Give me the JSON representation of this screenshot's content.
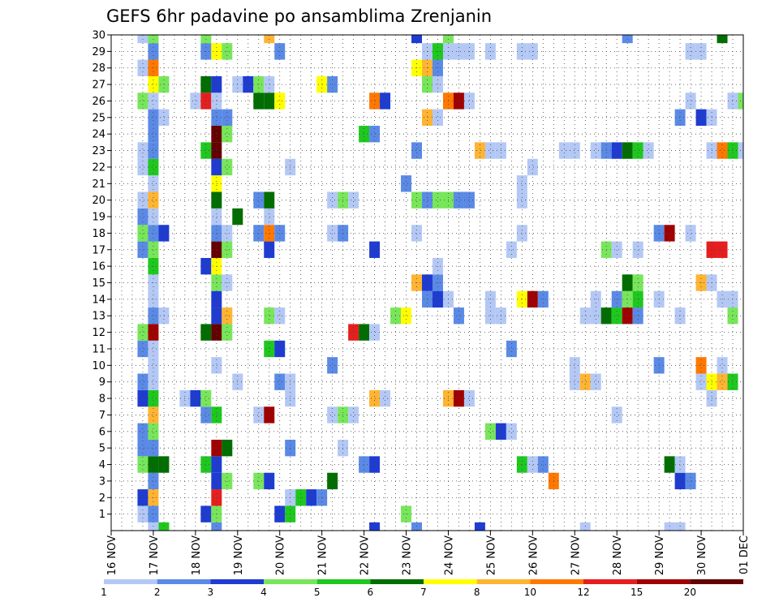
{
  "chart_data": {
    "type": "heatmap",
    "title": "GEFS 6hr padavine po ansamblima Zrenjanin",
    "xlabel": "",
    "ylabel": "",
    "x_tick_labels": [
      "16 NOV",
      "17 NOV",
      "18 NOV",
      "19 NOV",
      "20 NOV",
      "21 NOV",
      "22 NOV",
      "23 NOV",
      "24 NOV",
      "25 NOV",
      "26 NOV",
      "27 NOV",
      "28 NOV",
      "29 NOV",
      "30 NOV",
      "01 DEC"
    ],
    "x_unit": "6-hour steps from 16 NOV 00Z (4 steps per day)",
    "xlim": [
      0,
      60
    ],
    "y_members": [
      1,
      2,
      3,
      4,
      5,
      6,
      7,
      8,
      9,
      10,
      11,
      12,
      13,
      14,
      15,
      16,
      17,
      18,
      19,
      20,
      21,
      22,
      23,
      24,
      25,
      26,
      27,
      28,
      29,
      30
    ],
    "ylim": [
      0,
      30
    ],
    "grid": true,
    "colorbar": {
      "position": "bottom",
      "tick_labels": [
        "1",
        "2",
        "3",
        "4",
        "5",
        "6",
        "7",
        "8",
        "10",
        "12",
        "15",
        "20"
      ],
      "bins": [
        {
          "min": 1,
          "max": 2,
          "color": "#b4c8f5"
        },
        {
          "min": 2,
          "max": 3,
          "color": "#5a8ae6"
        },
        {
          "min": 3,
          "max": 4,
          "color": "#1e3cd2"
        },
        {
          "min": 4,
          "max": 5,
          "color": "#78e65a"
        },
        {
          "min": 5,
          "max": 6,
          "color": "#1ec81e"
        },
        {
          "min": 6,
          "max": 7,
          "color": "#006e00"
        },
        {
          "min": 7,
          "max": 8,
          "color": "#ffff00"
        },
        {
          "min": 8,
          "max": 10,
          "color": "#ffb432"
        },
        {
          "min": 10,
          "max": 12,
          "color": "#ff7800"
        },
        {
          "min": 12,
          "max": 15,
          "color": "#e61e1e"
        },
        {
          "min": 15,
          "max": 20,
          "color": "#a00000"
        },
        {
          "min": 20,
          "max": 25,
          "color": "#640000"
        }
      ]
    },
    "cells": [
      [
        0,
        4,
        1.5
      ],
      [
        0,
        5,
        5.5
      ],
      [
        0,
        10,
        2.5
      ],
      [
        0,
        25,
        3.5
      ],
      [
        0,
        29,
        2.5
      ],
      [
        0,
        35,
        3.5
      ],
      [
        0,
        45,
        1.5
      ],
      [
        0,
        53,
        1.5
      ],
      [
        0,
        54,
        1.5
      ],
      [
        1,
        3,
        1.5
      ],
      [
        1,
        4,
        2.5
      ],
      [
        1,
        9,
        3.5
      ],
      [
        1,
        10,
        4.5
      ],
      [
        1,
        16,
        3.5
      ],
      [
        1,
        17,
        5.5
      ],
      [
        1,
        28,
        4.5
      ],
      [
        2,
        3,
        3.5
      ],
      [
        2,
        4,
        8.5
      ],
      [
        2,
        10,
        12.5
      ],
      [
        2,
        17,
        1.5
      ],
      [
        2,
        18,
        5.5
      ],
      [
        2,
        19,
        3.5
      ],
      [
        2,
        20,
        2.5
      ],
      [
        3,
        4,
        2.5
      ],
      [
        3,
        10,
        3.5
      ],
      [
        3,
        11,
        4.5
      ],
      [
        3,
        14,
        4.5
      ],
      [
        3,
        15,
        3.5
      ],
      [
        3,
        21,
        6.5
      ],
      [
        3,
        42,
        10.5
      ],
      [
        3,
        54,
        3.5
      ],
      [
        3,
        55,
        2.5
      ],
      [
        4,
        3,
        4.5
      ],
      [
        4,
        4,
        6.5
      ],
      [
        4,
        5,
        6.5
      ],
      [
        4,
        9,
        5.5
      ],
      [
        4,
        10,
        3.5
      ],
      [
        4,
        24,
        2.5
      ],
      [
        4,
        25,
        3.5
      ],
      [
        4,
        39,
        5.5
      ],
      [
        4,
        40,
        1.5
      ],
      [
        4,
        41,
        2.5
      ],
      [
        4,
        53,
        6.5
      ],
      [
        4,
        54,
        1.5
      ],
      [
        5,
        3,
        2.5
      ],
      [
        5,
        4,
        2.5
      ],
      [
        5,
        10,
        15.5
      ],
      [
        5,
        11,
        6.5
      ],
      [
        5,
        17,
        2.5
      ],
      [
        5,
        22,
        1.5
      ],
      [
        6,
        3,
        2.5
      ],
      [
        6,
        4,
        4.5
      ],
      [
        6,
        36,
        4.5
      ],
      [
        6,
        37,
        3.5
      ],
      [
        6,
        38,
        1.5
      ],
      [
        7,
        4,
        8.5
      ],
      [
        7,
        9,
        2.5
      ],
      [
        7,
        10,
        5.5
      ],
      [
        7,
        14,
        1.5
      ],
      [
        7,
        15,
        15.5
      ],
      [
        7,
        21,
        1.5
      ],
      [
        7,
        22,
        4.5
      ],
      [
        7,
        23,
        1.5
      ],
      [
        7,
        48,
        1.5
      ],
      [
        8,
        3,
        3.5
      ],
      [
        8,
        4,
        5.5
      ],
      [
        8,
        7,
        1.5
      ],
      [
        8,
        8,
        3.5
      ],
      [
        8,
        9,
        4.5
      ],
      [
        8,
        17,
        1.5
      ],
      [
        8,
        25,
        8.5
      ],
      [
        8,
        26,
        1.5
      ],
      [
        8,
        32,
        8.5
      ],
      [
        8,
        33,
        15.5
      ],
      [
        8,
        34,
        1.5
      ],
      [
        8,
        57,
        1.5
      ],
      [
        9,
        3,
        2.5
      ],
      [
        9,
        4,
        1.5
      ],
      [
        9,
        12,
        1.5
      ],
      [
        9,
        16,
        2.5
      ],
      [
        9,
        17,
        1.5
      ],
      [
        9,
        44,
        1.5
      ],
      [
        9,
        45,
        8.5
      ],
      [
        9,
        46,
        1.5
      ],
      [
        9,
        56,
        1.5
      ],
      [
        9,
        57,
        7.5
      ],
      [
        9,
        58,
        8.5
      ],
      [
        9,
        59,
        5.5
      ],
      [
        10,
        4,
        1.5
      ],
      [
        10,
        10,
        1.5
      ],
      [
        10,
        21,
        2.5
      ],
      [
        10,
        44,
        1.5
      ],
      [
        10,
        52,
        2.5
      ],
      [
        10,
        56,
        10.5
      ],
      [
        10,
        58,
        1.5
      ],
      [
        11,
        3,
        2.5
      ],
      [
        11,
        4,
        1.5
      ],
      [
        11,
        15,
        5.5
      ],
      [
        11,
        16,
        3.5
      ],
      [
        11,
        38,
        2.5
      ],
      [
        12,
        3,
        4.5
      ],
      [
        12,
        4,
        15.5
      ],
      [
        12,
        9,
        6.5
      ],
      [
        12,
        10,
        20.5
      ],
      [
        12,
        11,
        4.5
      ],
      [
        12,
        23,
        12.5
      ],
      [
        12,
        24,
        6.5
      ],
      [
        12,
        25,
        1.5
      ],
      [
        13,
        4,
        2.5
      ],
      [
        13,
        5,
        1.5
      ],
      [
        13,
        10,
        3.5
      ],
      [
        13,
        11,
        8.5
      ],
      [
        13,
        15,
        4.5
      ],
      [
        13,
        16,
        1.5
      ],
      [
        13,
        27,
        4.5
      ],
      [
        13,
        28,
        7.5
      ],
      [
        13,
        33,
        2.5
      ],
      [
        13,
        36,
        1.5
      ],
      [
        13,
        37,
        1.5
      ],
      [
        13,
        45,
        1.5
      ],
      [
        13,
        46,
        1.5
      ],
      [
        13,
        47,
        6.5
      ],
      [
        13,
        48,
        5.5
      ],
      [
        13,
        49,
        15.5
      ],
      [
        13,
        50,
        2.5
      ],
      [
        13,
        54,
        1.5
      ],
      [
        13,
        59,
        4.5
      ],
      [
        14,
        4,
        1.5
      ],
      [
        14,
        10,
        3.5
      ],
      [
        14,
        30,
        2.5
      ],
      [
        14,
        31,
        3.5
      ],
      [
        14,
        32,
        1.5
      ],
      [
        14,
        36,
        1.5
      ],
      [
        14,
        39,
        7.5
      ],
      [
        14,
        40,
        15.5
      ],
      [
        14,
        41,
        2.5
      ],
      [
        14,
        46,
        1.5
      ],
      [
        14,
        48,
        2.5
      ],
      [
        14,
        49,
        4.5
      ],
      [
        14,
        50,
        5.5
      ],
      [
        14,
        52,
        1.5
      ],
      [
        14,
        58,
        1.5
      ],
      [
        14,
        59,
        1.5
      ],
      [
        15,
        4,
        1.5
      ],
      [
        15,
        10,
        4.5
      ],
      [
        15,
        11,
        1.5
      ],
      [
        15,
        29,
        8.5
      ],
      [
        15,
        30,
        3.5
      ],
      [
        15,
        31,
        2.5
      ],
      [
        15,
        49,
        6.5
      ],
      [
        15,
        50,
        4.5
      ],
      [
        15,
        56,
        8.5
      ],
      [
        15,
        57,
        1.5
      ],
      [
        16,
        4,
        5.5
      ],
      [
        16,
        9,
        3.5
      ],
      [
        16,
        10,
        7.5
      ],
      [
        16,
        31,
        1.5
      ],
      [
        17,
        3,
        2.5
      ],
      [
        17,
        4,
        4.5
      ],
      [
        17,
        10,
        20.5
      ],
      [
        17,
        11,
        4.5
      ],
      [
        17,
        15,
        3.5
      ],
      [
        17,
        25,
        3.5
      ],
      [
        17,
        38,
        1.5
      ],
      [
        17,
        47,
        4.5
      ],
      [
        17,
        48,
        1.5
      ],
      [
        17,
        50,
        1.5
      ],
      [
        17,
        57,
        12.5
      ],
      [
        17,
        58,
        12.5
      ],
      [
        18,
        3,
        4.5
      ],
      [
        18,
        4,
        2.5
      ],
      [
        18,
        5,
        3.5
      ],
      [
        18,
        10,
        2.5
      ],
      [
        18,
        11,
        1.5
      ],
      [
        18,
        14,
        2.5
      ],
      [
        18,
        15,
        10.5
      ],
      [
        18,
        16,
        2.5
      ],
      [
        18,
        21,
        1.5
      ],
      [
        18,
        22,
        2.5
      ],
      [
        18,
        29,
        1.5
      ],
      [
        18,
        39,
        1.5
      ],
      [
        18,
        52,
        2.5
      ],
      [
        18,
        53,
        15.5
      ],
      [
        18,
        55,
        1.5
      ],
      [
        19,
        3,
        2.5
      ],
      [
        19,
        4,
        1.5
      ],
      [
        19,
        10,
        1.5
      ],
      [
        19,
        12,
        6.5
      ],
      [
        19,
        15,
        1.5
      ],
      [
        20,
        3,
        1.5
      ],
      [
        20,
        4,
        8.5
      ],
      [
        20,
        10,
        6.5
      ],
      [
        20,
        14,
        2.5
      ],
      [
        20,
        15,
        6.5
      ],
      [
        20,
        21,
        1.5
      ],
      [
        20,
        22,
        4.5
      ],
      [
        20,
        23,
        1.5
      ],
      [
        20,
        29,
        4.5
      ],
      [
        20,
        30,
        2.5
      ],
      [
        20,
        31,
        4.5
      ],
      [
        20,
        32,
        4.5
      ],
      [
        20,
        33,
        2.5
      ],
      [
        20,
        34,
        2.5
      ],
      [
        20,
        39,
        1.5
      ],
      [
        21,
        4,
        1.5
      ],
      [
        21,
        10,
        7.5
      ],
      [
        21,
        28,
        2.5
      ],
      [
        21,
        39,
        1.5
      ],
      [
        22,
        3,
        1.5
      ],
      [
        22,
        4,
        5.5
      ],
      [
        22,
        10,
        3.5
      ],
      [
        22,
        11,
        4.5
      ],
      [
        22,
        17,
        1.5
      ],
      [
        22,
        40,
        1.5
      ],
      [
        23,
        3,
        1.5
      ],
      [
        23,
        4,
        2.5
      ],
      [
        23,
        9,
        5.5
      ],
      [
        23,
        10,
        20.5
      ],
      [
        23,
        29,
        2.5
      ],
      [
        23,
        35,
        8.5
      ],
      [
        23,
        36,
        1.5
      ],
      [
        23,
        37,
        1.5
      ],
      [
        23,
        43,
        1.5
      ],
      [
        23,
        44,
        1.5
      ],
      [
        23,
        46,
        1.5
      ],
      [
        23,
        47,
        2.5
      ],
      [
        23,
        48,
        3.5
      ],
      [
        23,
        49,
        6.5
      ],
      [
        23,
        50,
        5.5
      ],
      [
        23,
        51,
        1.5
      ],
      [
        23,
        57,
        1.5
      ],
      [
        23,
        58,
        10.5
      ],
      [
        23,
        59,
        5.5
      ],
      [
        23,
        60,
        1.5
      ],
      [
        24,
        4,
        2.5
      ],
      [
        24,
        10,
        20.5
      ],
      [
        24,
        11,
        4.5
      ],
      [
        24,
        24,
        5.5
      ],
      [
        24,
        25,
        2.5
      ],
      [
        25,
        4,
        2.5
      ],
      [
        25,
        5,
        1.5
      ],
      [
        25,
        10,
        2.5
      ],
      [
        25,
        11,
        2.5
      ],
      [
        25,
        30,
        8.5
      ],
      [
        25,
        31,
        1.5
      ],
      [
        25,
        54,
        2.5
      ],
      [
        25,
        56,
        3.5
      ],
      [
        25,
        57,
        1.5
      ],
      [
        26,
        3,
        4.5
      ],
      [
        26,
        4,
        1.5
      ],
      [
        26,
        8,
        1.5
      ],
      [
        26,
        9,
        12.5
      ],
      [
        26,
        10,
        1.5
      ],
      [
        26,
        14,
        6.5
      ],
      [
        26,
        15,
        6.5
      ],
      [
        26,
        16,
        7.5
      ],
      [
        26,
        25,
        10.5
      ],
      [
        26,
        26,
        3.5
      ],
      [
        26,
        32,
        10.5
      ],
      [
        26,
        33,
        15.5
      ],
      [
        26,
        34,
        1.5
      ],
      [
        26,
        55,
        1.5
      ],
      [
        26,
        59,
        1.5
      ],
      [
        26,
        60,
        4.5
      ],
      [
        27,
        4,
        7.5
      ],
      [
        27,
        5,
        4.5
      ],
      [
        27,
        9,
        6.5
      ],
      [
        27,
        10,
        3.5
      ],
      [
        27,
        12,
        1.5
      ],
      [
        27,
        13,
        3.5
      ],
      [
        27,
        14,
        4.5
      ],
      [
        27,
        15,
        1.5
      ],
      [
        27,
        20,
        7.5
      ],
      [
        27,
        21,
        2.5
      ],
      [
        27,
        30,
        4.5
      ],
      [
        27,
        31,
        1.5
      ],
      [
        28,
        3,
        1.5
      ],
      [
        28,
        4,
        10.5
      ],
      [
        28,
        29,
        7.5
      ],
      [
        28,
        30,
        8.5
      ],
      [
        28,
        31,
        2.5
      ],
      [
        29,
        4,
        2.5
      ],
      [
        29,
        9,
        2.5
      ],
      [
        29,
        10,
        7.5
      ],
      [
        29,
        11,
        4.5
      ],
      [
        29,
        16,
        2.5
      ],
      [
        29,
        30,
        1.5
      ],
      [
        29,
        31,
        5.5
      ],
      [
        29,
        32,
        1.5
      ],
      [
        29,
        33,
        1.5
      ],
      [
        29,
        34,
        1.5
      ],
      [
        29,
        36,
        1.5
      ],
      [
        29,
        39,
        1.5
      ],
      [
        29,
        40,
        1.5
      ],
      [
        29,
        55,
        1.5
      ],
      [
        29,
        56,
        1.5
      ],
      [
        30,
        3,
        1.5
      ],
      [
        30,
        4,
        4.5
      ],
      [
        30,
        9,
        4.5
      ],
      [
        30,
        15,
        8.5
      ],
      [
        30,
        29,
        3.5
      ],
      [
        30,
        32,
        4.5
      ],
      [
        30,
        49,
        2.5
      ],
      [
        30,
        58,
        6.5
      ]
    ]
  }
}
